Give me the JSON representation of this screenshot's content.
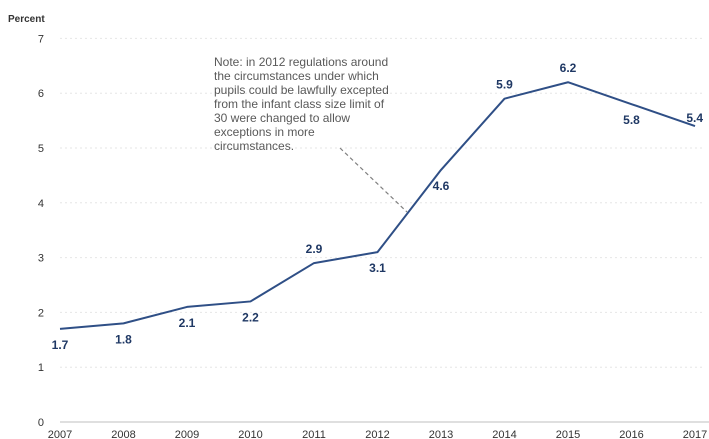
{
  "chart_data": {
    "type": "line",
    "ylabel": "Percent",
    "xlabel": "",
    "title": "",
    "categories": [
      "2007",
      "2008",
      "2009",
      "2010",
      "2011",
      "2012",
      "2013",
      "2014",
      "2015",
      "2016",
      "2017"
    ],
    "series": [
      {
        "values": [
          1.7,
          1.8,
          2.1,
          2.2,
          2.9,
          3.1,
          4.6,
          5.9,
          6.2,
          5.8,
          5.4
        ],
        "data_labels": [
          "1.7",
          "1.8",
          "2.1",
          "2.2",
          "2.9",
          "3.1",
          "4.6",
          "5.9",
          "6.2",
          "5.8",
          "5.4"
        ]
      }
    ],
    "ylim": [
      0,
      7
    ],
    "yticks": [
      "0",
      "1",
      "2",
      "3",
      "4",
      "5",
      "6",
      "7"
    ],
    "grid": true,
    "annotation": {
      "lines": [
        "Note: in 2012 regulations around",
        "the circumstances under which",
        "pupils could be lawfully excepted",
        "from the infant class size limit of",
        "30 were changed to allow",
        "exceptions in more",
        "circumstances."
      ]
    },
    "colors": {
      "line": "#2f4f86",
      "labels": "#1f3864",
      "note": "#595959",
      "leader": "#808080"
    }
  }
}
